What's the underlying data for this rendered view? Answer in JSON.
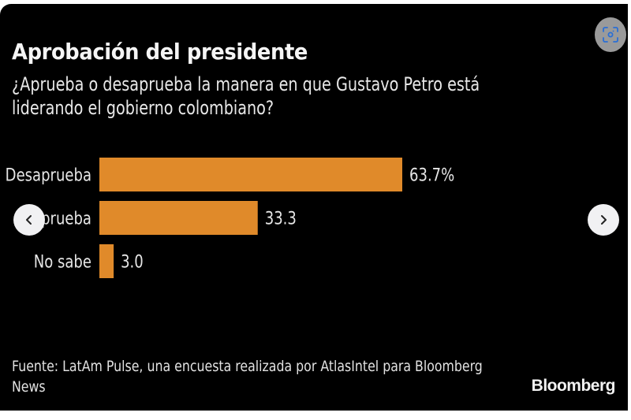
{
  "header": {
    "title": "Aprobación del presidente",
    "subtitle": "¿Aprueba o desaprueba la manera en que Gustavo Petro está liderando el gobierno colombiano?"
  },
  "footer": {
    "source": "Fuente: LatAm Pulse, una encuesta realizada por AtlasIntel para Bloomberg News",
    "brand": "Bloomberg"
  },
  "controls": {
    "prev_icon": "chevron-left-icon",
    "next_icon": "chevron-right-icon",
    "lens_icon": "visual-search-icon"
  },
  "colors": {
    "bar": "#E08A2A",
    "background": "#000000",
    "text": "#E6E6E6"
  },
  "chart_data": {
    "type": "bar",
    "orientation": "horizontal",
    "title": "Aprobación del presidente",
    "subtitle": "¿Aprueba o desaprueba la manera en que Gustavo Petro está liderando el gobierno colombiano?",
    "categories": [
      "Desaprueba",
      "Aprueba",
      "No sabe"
    ],
    "values": [
      63.7,
      33.3,
      3.0
    ],
    "value_labels": [
      "63.7%",
      "33.3",
      "3.0"
    ],
    "unit": "%",
    "xlabel": "",
    "ylabel": "",
    "xlim": [
      0,
      63.7
    ],
    "grid": false,
    "legend": "none"
  }
}
